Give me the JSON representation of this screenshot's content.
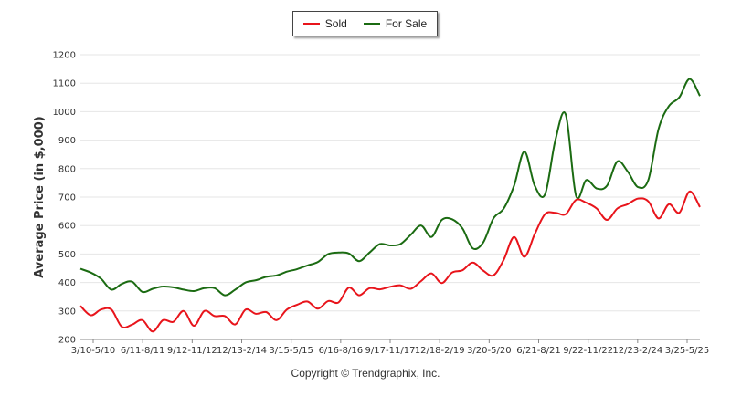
{
  "chart_data": {
    "type": "line",
    "ylabel": "Average Price (in $,000)",
    "ylim": [
      200,
      1200
    ],
    "yticks": [
      200,
      300,
      400,
      500,
      600,
      700,
      800,
      900,
      1000,
      1100,
      1200
    ],
    "tick_labels": [
      "3/10-5/10",
      "6/11-8/11",
      "9/12-11/12",
      "12/13-2/14",
      "3/15-5/15",
      "6/16-8/16",
      "9/17-11/17",
      "12/18-2/19",
      "3/20-5/20",
      "6/21-8/21",
      "9/22-11/22",
      "12/23-2/24",
      "3/25-5/25"
    ],
    "legend_position": "top-center",
    "grid": true,
    "series": [
      {
        "name": "Sold",
        "color": "#e8141b",
        "values": [
          318,
          285,
          305,
          305,
          245,
          252,
          268,
          228,
          268,
          262,
          300,
          248,
          300,
          282,
          282,
          253,
          305,
          290,
          296,
          268,
          305,
          322,
          333,
          308,
          335,
          330,
          382,
          355,
          380,
          376,
          385,
          390,
          378,
          405,
          432,
          398,
          435,
          443,
          470,
          442,
          425,
          480,
          560,
          490,
          570,
          640,
          645,
          640,
          690,
          680,
          660,
          620,
          660,
          675,
          695,
          685,
          625,
          675,
          645,
          720,
          665
        ]
      },
      {
        "name": "For Sale",
        "color": "#1b6b12",
        "values": [
          448,
          435,
          413,
          375,
          395,
          403,
          367,
          378,
          386,
          383,
          375,
          370,
          380,
          380,
          355,
          375,
          400,
          408,
          420,
          425,
          438,
          447,
          460,
          472,
          500,
          505,
          502,
          475,
          505,
          535,
          530,
          535,
          568,
          600,
          560,
          620,
          622,
          590,
          520,
          540,
          625,
          660,
          740,
          860,
          740,
          710,
          900,
          990,
          705,
          760,
          730,
          740,
          825,
          790,
          735,
          760,
          940,
          1020,
          1050,
          1115,
          1055
        ]
      }
    ]
  },
  "legend": {
    "items": [
      "Sold",
      "For Sale"
    ]
  },
  "footer": {
    "copyright": "Copyright © Trendgraphix, Inc."
  }
}
